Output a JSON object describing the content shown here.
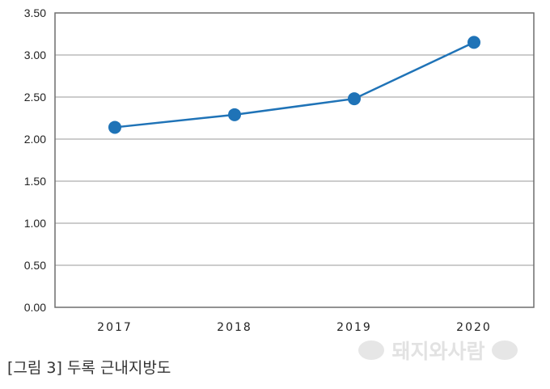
{
  "chart_data": {
    "type": "line",
    "categories": [
      "2017",
      "2018",
      "2019",
      "2020"
    ],
    "series": [
      {
        "values": [
          2.14,
          2.29,
          2.48,
          3.15
        ]
      }
    ],
    "yticks": [
      "0.00",
      "0.50",
      "1.00",
      "1.50",
      "2.00",
      "2.50",
      "3.00",
      "3.50"
    ],
    "ylim": [
      0,
      3.5
    ],
    "grid": "horizontal",
    "legend": "none",
    "line_color": "#1f73b7",
    "grid_color": "#9a9a9a",
    "frame_color": "#6e6e6e"
  },
  "caption": "[그림 3] 두록 근내지방도",
  "watermark": {
    "text": "돼지와사람"
  }
}
